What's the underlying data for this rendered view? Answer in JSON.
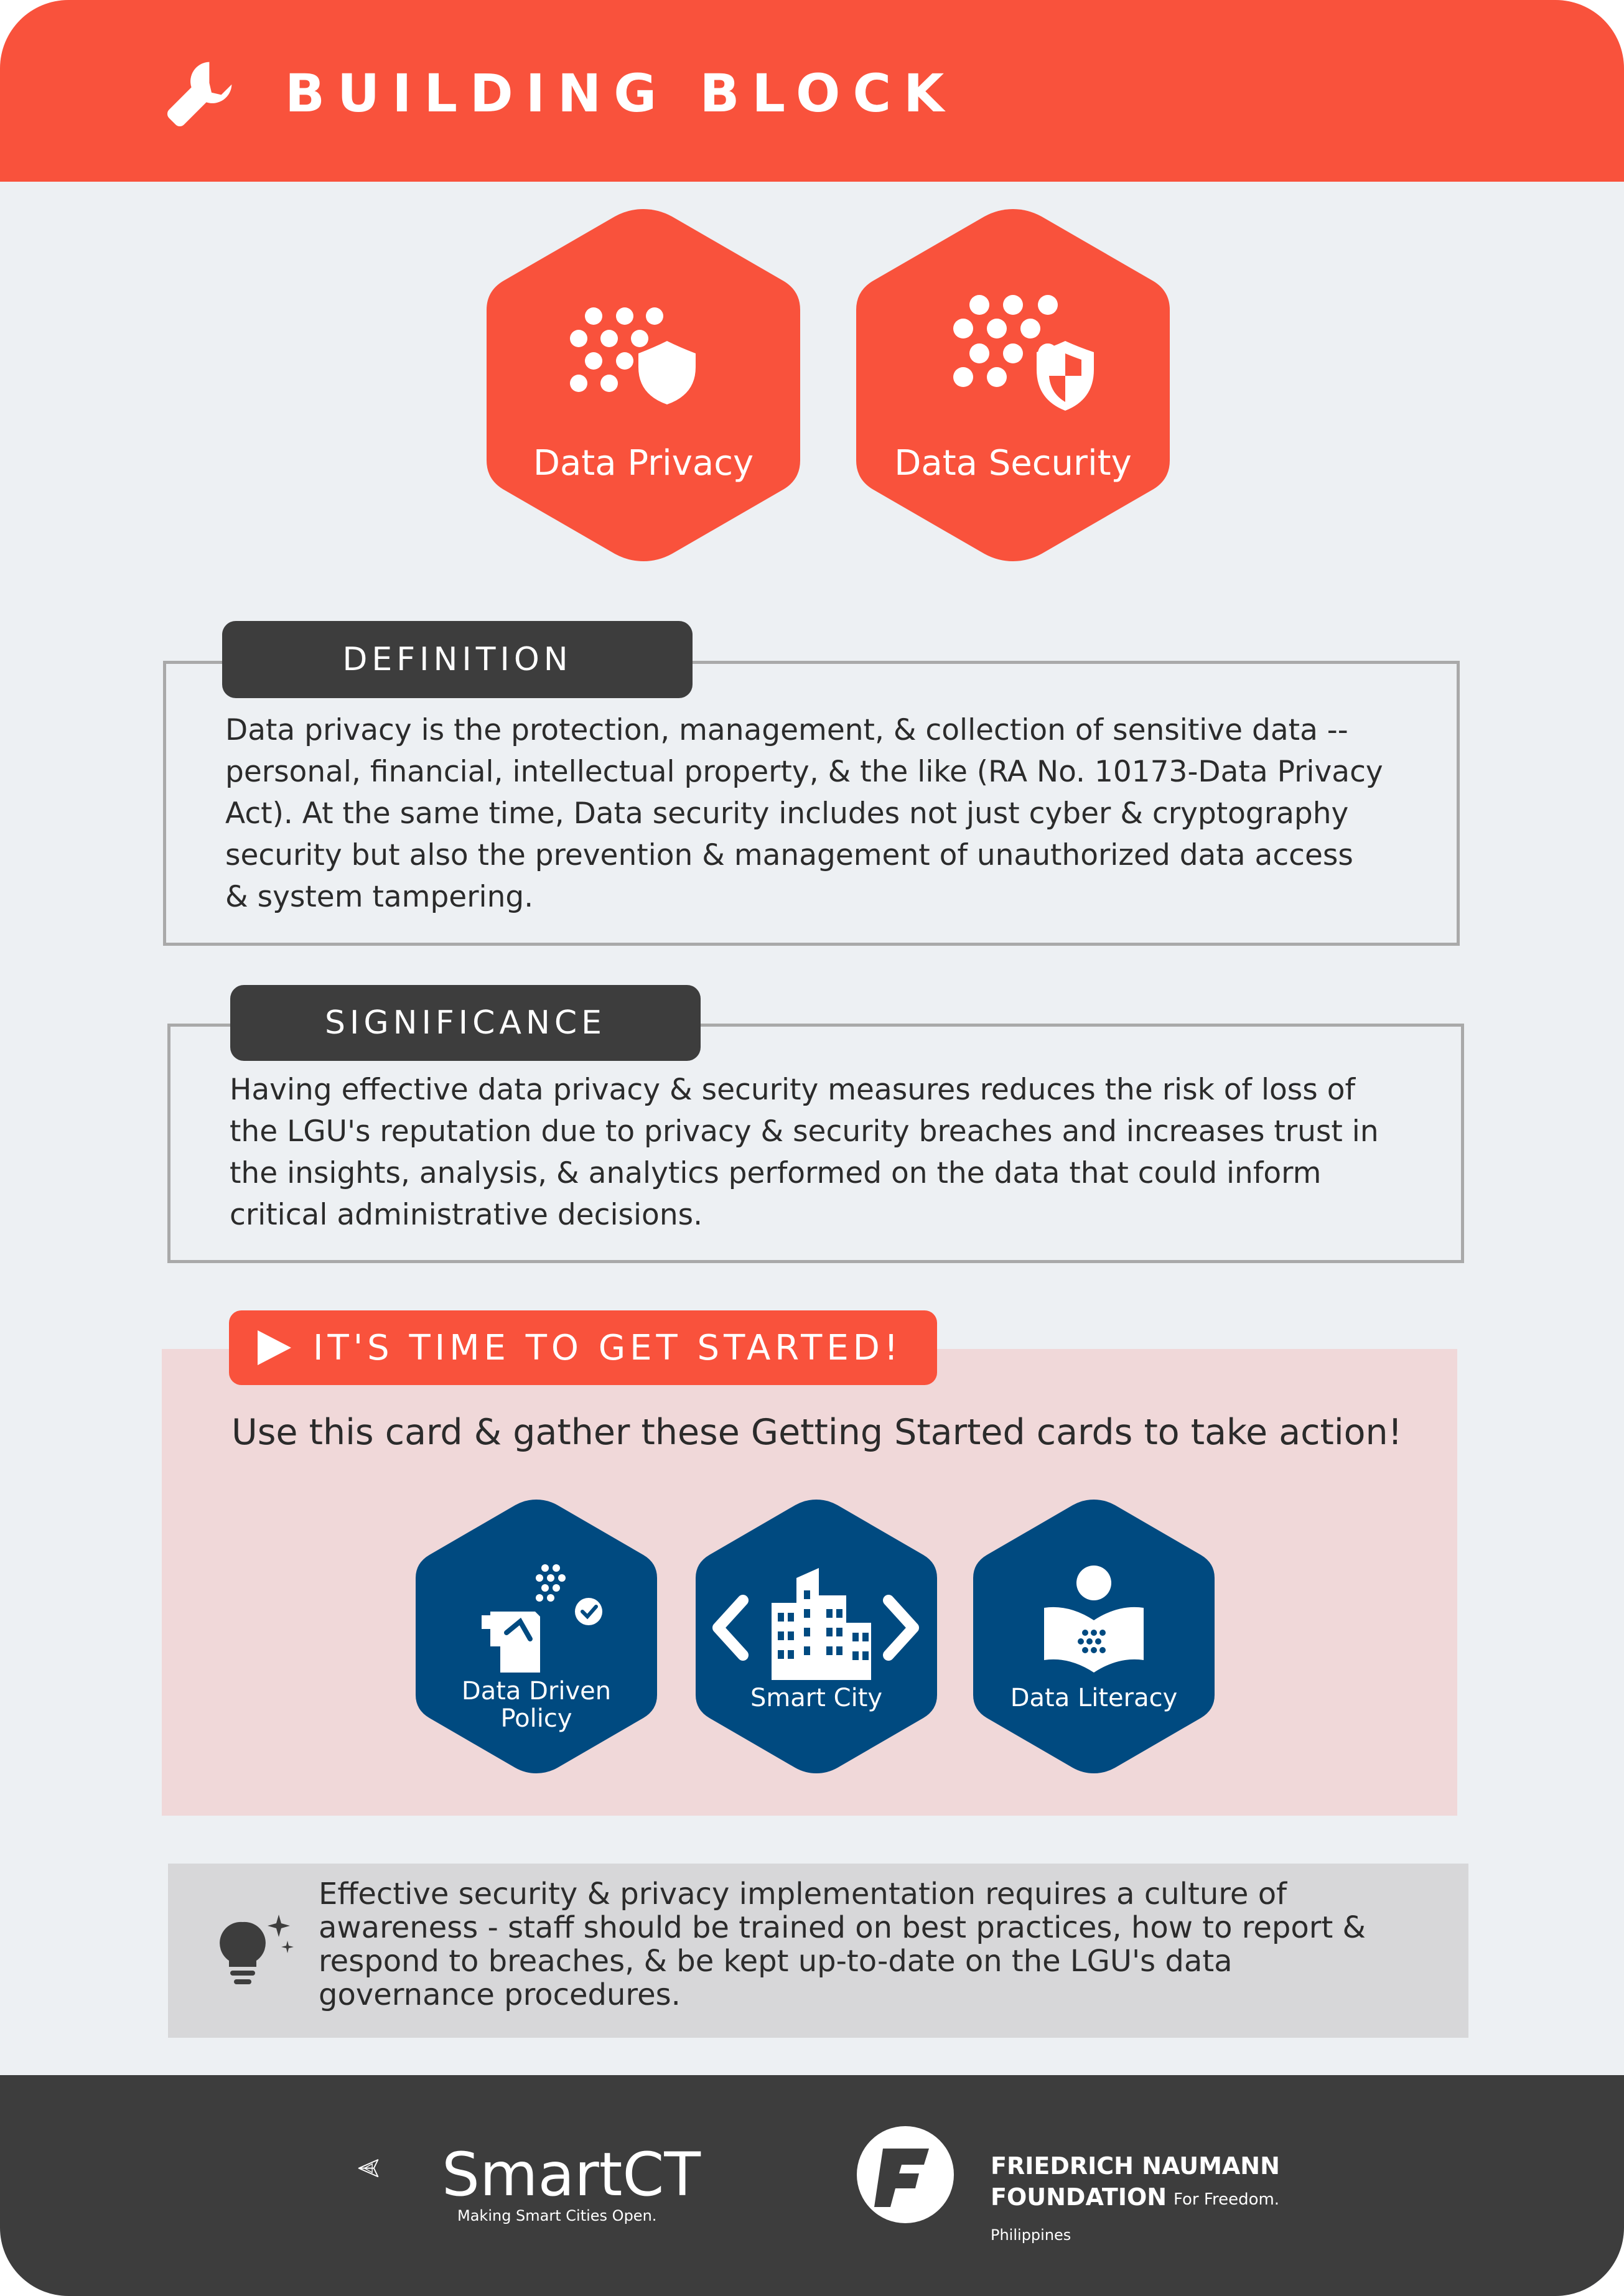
{
  "header": {
    "icon": "wrench-icon",
    "title": "BUILDING BLOCK",
    "color": "#f9523c"
  },
  "blocks": [
    {
      "label": "Data Privacy",
      "icon": "data-shield-icon"
    },
    {
      "label": "Data Security",
      "icon": "data-security-shield-icon"
    }
  ],
  "definition": {
    "heading": "DEFINITION",
    "lines": [
      "Data privacy is the protection, management, & collection of sensitive data --",
      "personal, financial, intellectual property, & the like (RA No. 10173-Data Privacy",
      "Act). At the same time, Data security includes not just cyber & cryptography",
      "security but also the prevention & management of unauthorized data access",
      "& system tampering."
    ]
  },
  "significance": {
    "heading": "SIGNIFICANCE",
    "lines": [
      "Having effective data privacy & security measures reduces the risk of loss of",
      "the LGU's reputation due to privacy & security breaches and increases trust in",
      "the insights, analysis, & analytics performed on the data that could inform",
      "critical administrative decisions."
    ]
  },
  "getting_started": {
    "title": "IT'S TIME TO GET STARTED!",
    "icon": "play-icon",
    "subtitle": "Use this card & gather these Getting Started cards to take action!",
    "cards": [
      {
        "line1": "Data Driven",
        "line2": "Policy",
        "icon": "policy-icon"
      },
      {
        "line1": "Smart City",
        "line2": "",
        "icon": "city-code-icon"
      },
      {
        "line1": "Data Literacy",
        "line2": "",
        "icon": "reader-book-icon"
      }
    ],
    "card_color": "#004a80"
  },
  "tip": {
    "icon": "lightbulb-icon",
    "lines": [
      "Effective security & privacy implementation requires a culture of",
      "awareness - staff should be trained on best practices, how to report &",
      "respond to breaches, & be kept up-to-date on the LGU's data",
      "governance procedures."
    ]
  },
  "footer": {
    "smartct": {
      "name": "SmartCT",
      "tagline": "Making Smart Cities Open."
    },
    "fnf": {
      "line1": "FRIEDRICH NAUMANN",
      "line2": "FOUNDATION",
      "tagline": "For Freedom.",
      "country": "Philippines"
    }
  }
}
